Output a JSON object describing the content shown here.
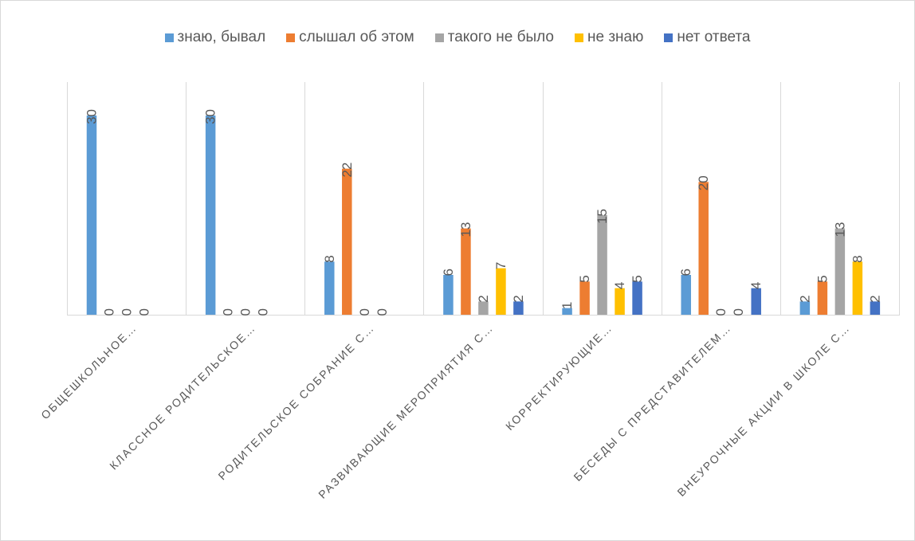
{
  "chart_data": {
    "type": "bar",
    "categories": [
      "ОБЩЕШКОЛЬНОЕ…",
      "КЛАССНОЕ РОДИТЕЛЬСКОЕ…",
      "РОДИТЕЛЬСКОЕ СОБРАНИЕ С…",
      "РАЗВИВАЮЩИЕ МЕРОПРИЯТИЯ С…",
      "КОРРЕКТИРУЮЩИЕ…",
      "БЕСЕДЫ С ПРЕДСТАВИТЕЛЕМ…",
      "ВНЕУРОЧНЫЕ АКЦИИ В ШКОЛЕ С…"
    ],
    "series": [
      {
        "name": "знаю, бывал",
        "color": "#5b9bd5",
        "values": [
          30,
          30,
          8,
          6,
          1,
          6,
          2
        ]
      },
      {
        "name": "слышал об этом",
        "color": "#ed7d31",
        "values": [
          0,
          0,
          22,
          13,
          5,
          20,
          5
        ]
      },
      {
        "name": "такого не было",
        "color": "#a5a5a5",
        "values": [
          0,
          0,
          0,
          2,
          15,
          0,
          13
        ]
      },
      {
        "name": "не знаю",
        "color": "#ffc000",
        "values": [
          0,
          0,
          0,
          7,
          4,
          0,
          8
        ]
      },
      {
        "name": "нет ответа",
        "color": "#4472c4",
        "values": [
          null,
          null,
          null,
          2,
          5,
          4,
          2
        ]
      }
    ],
    "ylim": [
      0,
      30
    ],
    "grid": "vertical category separators",
    "legend": "top"
  }
}
